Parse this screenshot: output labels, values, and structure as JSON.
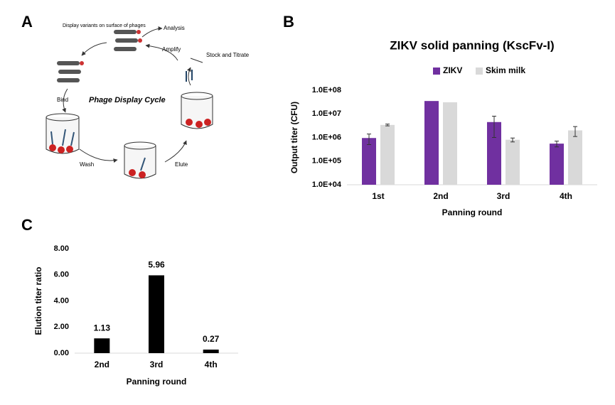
{
  "panel_labels": [
    "A",
    "B",
    "C"
  ],
  "diagram": {
    "title": "Phage Display Cycle",
    "steps": [
      "Display variants on surface of phages",
      "Analysis",
      "Amplify",
      "Stock and Titrate",
      "Bind",
      "Wash",
      "Elute"
    ]
  },
  "chart_data": [
    {
      "type": "bar",
      "title": "ZIKV solid panning (KscFv-I)",
      "x_label": "Panning round",
      "y_label": "Output titer (CFU)",
      "categories": [
        "1st",
        "2nd",
        "3rd",
        "4th"
      ],
      "log_scale": true,
      "ylim": [
        10000,
        100000000
      ],
      "yticks": [
        {
          "value": 10000,
          "label": "1.0E+04"
        },
        {
          "value": 100000,
          "label": "1.0E+05"
        },
        {
          "value": 1000000,
          "label": "1.0E+06"
        },
        {
          "value": 10000000,
          "label": "1.0E+07"
        },
        {
          "value": 100000000,
          "label": "1.0E+08"
        }
      ],
      "legend": "top",
      "series": [
        {
          "name": "ZIKV",
          "color": "#7030a0",
          "values": [
            950000,
            35000000,
            4500000,
            550000
          ],
          "errors": [
            450000,
            null,
            3500000,
            150000
          ]
        },
        {
          "name": "Skim milk",
          "color": "#d9d9d9",
          "values": [
            3400000,
            31000000,
            800000,
            2000000
          ],
          "errors": [
            300000,
            null,
            150000,
            900000
          ]
        }
      ]
    },
    {
      "type": "bar",
      "x_label": "Panning round",
      "y_label": "Elution titer ratio",
      "categories": [
        "2nd",
        "3rd",
        "4th"
      ],
      "values": [
        1.13,
        5.96,
        0.27
      ],
      "color": "#000000",
      "ylim": [
        0,
        8
      ],
      "yticks": [
        {
          "value": 0,
          "label": "0.00"
        },
        {
          "value": 2,
          "label": "2.00"
        },
        {
          "value": 4,
          "label": "4.00"
        },
        {
          "value": 6,
          "label": "6.00"
        },
        {
          "value": 8,
          "label": "8.00"
        }
      ]
    }
  ]
}
